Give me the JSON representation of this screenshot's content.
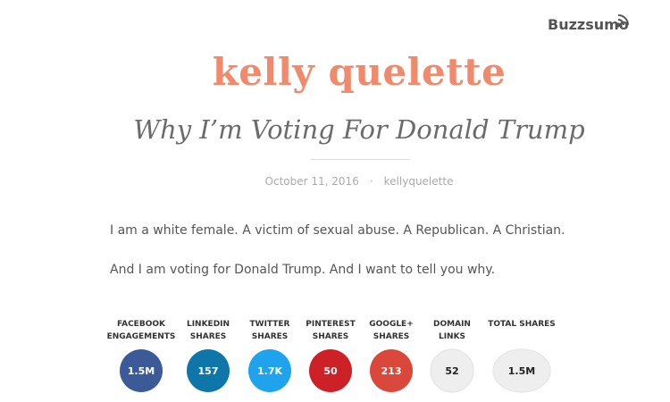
{
  "brand": "Buzzsumo",
  "blog_title": "kelly quelette",
  "post": {
    "title": "Why I’m Voting For Donald Trump",
    "date": "October 11, 2016",
    "separator": "·",
    "author": "kellyquelette",
    "paragraphs": [
      "I am a white female. A victim of sexual abuse. A Republican. A Christian.",
      "And I am voting for Donald Trump. And I want to tell you why."
    ]
  },
  "stats": [
    {
      "label": [
        "FACEBOOK",
        "ENGAGEMENTS"
      ],
      "value": "1.5M",
      "color": "#3d5a98",
      "text_color": "#ffffff"
    },
    {
      "label": [
        "LINKEDIN",
        "SHARES"
      ],
      "value": "157",
      "color": "#0e76a8",
      "text_color": "#ffffff"
    },
    {
      "label": [
        "TWITTER",
        "SHARES"
      ],
      "value": "1.7K",
      "color": "#1fa3ec",
      "text_color": "#ffffff"
    },
    {
      "label": [
        "PINTEREST",
        "SHARES"
      ],
      "value": "50",
      "color": "#cc2127",
      "text_color": "#ffffff"
    },
    {
      "label": [
        "GOOGLE+",
        "SHARES"
      ],
      "value": "213",
      "color": "#d9483b",
      "text_color": "#ffffff"
    },
    {
      "label": [
        "DOMAIN",
        "LINKS"
      ],
      "value": "52",
      "color": "#eeeeee",
      "text_color": "#222222"
    },
    {
      "label": [
        "TOTAL SHARES"
      ],
      "value": "1.5M",
      "color": "#eeeeee",
      "text_color": "#222222"
    }
  ]
}
